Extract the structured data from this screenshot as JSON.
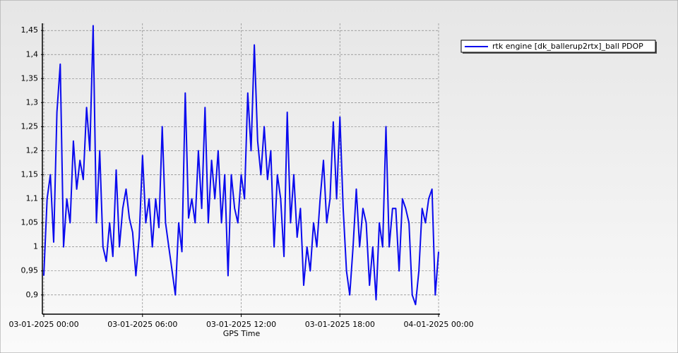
{
  "chart_data": {
    "type": "line",
    "xlabel": "GPS Time",
    "grid": true,
    "legend": "top-right",
    "xlim": [
      0,
      24
    ],
    "xticks": [
      {
        "value": 0,
        "label": "03-01-2025 00:00"
      },
      {
        "value": 6,
        "label": "03-01-2025 06:00"
      },
      {
        "value": 12,
        "label": "03-01-2025 12:00"
      },
      {
        "value": 18,
        "label": "03-01-2025 18:00"
      },
      {
        "value": 24,
        "label": "04-01-2025 00:00"
      }
    ],
    "ylim": [
      0.86,
      1.465
    ],
    "yticks": [
      {
        "value": 0.9,
        "label": "0,9"
      },
      {
        "value": 0.95,
        "label": "0,95"
      },
      {
        "value": 1,
        "label": "1"
      },
      {
        "value": 1.05,
        "label": "1,05"
      },
      {
        "value": 1.1,
        "label": "1,1"
      },
      {
        "value": 1.15,
        "label": "1,15"
      },
      {
        "value": 1.2,
        "label": "1,2"
      },
      {
        "value": 1.25,
        "label": "1,25"
      },
      {
        "value": 1.3,
        "label": "1,3"
      },
      {
        "value": 1.35,
        "label": "1,35"
      },
      {
        "value": 1.4,
        "label": "1,4"
      },
      {
        "value": 1.45,
        "label": "1,45"
      }
    ],
    "x": [
      0,
      0.2,
      0.4,
      0.6,
      0.8,
      1,
      1.2,
      1.4,
      1.6,
      1.8,
      2,
      2.2,
      2.4,
      2.6,
      2.8,
      3,
      3.2,
      3.4,
      3.6,
      3.8,
      4,
      4.2,
      4.4,
      4.6,
      4.8,
      5,
      5.2,
      5.4,
      5.6,
      5.8,
      6,
      6.2,
      6.4,
      6.6,
      6.8,
      7,
      7.2,
      7.4,
      7.6,
      7.8,
      8,
      8.2,
      8.4,
      8.6,
      8.8,
      9,
      9.2,
      9.4,
      9.6,
      9.8,
      10,
      10.2,
      10.4,
      10.6,
      10.8,
      11,
      11.2,
      11.4,
      11.6,
      11.8,
      12,
      12.2,
      12.4,
      12.6,
      12.8,
      13,
      13.2,
      13.4,
      13.6,
      13.8,
      14,
      14.2,
      14.4,
      14.6,
      14.8,
      15,
      15.2,
      15.4,
      15.6,
      15.8,
      16,
      16.2,
      16.4,
      16.6,
      16.8,
      17,
      17.2,
      17.4,
      17.6,
      17.8,
      18,
      18.2,
      18.4,
      18.6,
      18.8,
      19,
      19.2,
      19.4,
      19.6,
      19.8,
      20,
      20.2,
      20.4,
      20.6,
      20.8,
      21,
      21.2,
      21.4,
      21.6,
      21.8,
      22,
      22.2,
      22.4,
      22.6,
      22.8,
      23,
      23.2,
      23.4,
      23.6,
      23.8,
      24
    ],
    "series": [
      {
        "name": "rtk engine [dk_ballerup2rtx]_ball PDOP",
        "color": "#0a0aee",
        "values": [
          0.94,
          1.1,
          1.15,
          1.01,
          1.28,
          1.38,
          1.0,
          1.1,
          1.05,
          1.22,
          1.12,
          1.18,
          1.14,
          1.29,
          1.2,
          1.46,
          1.05,
          1.2,
          1.0,
          0.97,
          1.05,
          0.98,
          1.16,
          1.0,
          1.08,
          1.12,
          1.06,
          1.03,
          0.94,
          1.02,
          1.19,
          1.05,
          1.1,
          1.0,
          1.1,
          1.04,
          1.25,
          1.05,
          1.0,
          0.95,
          0.9,
          1.05,
          0.99,
          1.32,
          1.06,
          1.1,
          1.05,
          1.2,
          1.08,
          1.29,
          1.05,
          1.18,
          1.1,
          1.2,
          1.05,
          1.15,
          0.94,
          1.15,
          1.08,
          1.05,
          1.15,
          1.1,
          1.32,
          1.2,
          1.42,
          1.22,
          1.15,
          1.25,
          1.14,
          1.2,
          1.0,
          1.15,
          1.1,
          0.98,
          1.28,
          1.05,
          1.15,
          1.02,
          1.08,
          0.92,
          1.0,
          0.95,
          1.05,
          1.0,
          1.1,
          1.18,
          1.05,
          1.1,
          1.26,
          1.1,
          1.27,
          1.08,
          0.95,
          0.9,
          1.0,
          1.12,
          1.0,
          1.08,
          1.05,
          0.92,
          1.0,
          0.89,
          1.05,
          1.0,
          1.25,
          1.0,
          1.08,
          1.08,
          0.95,
          1.1,
          1.08,
          1.05,
          0.9,
          0.88,
          0.95,
          1.08,
          1.05,
          1.1,
          1.12,
          0.9,
          0.99
        ]
      }
    ]
  }
}
